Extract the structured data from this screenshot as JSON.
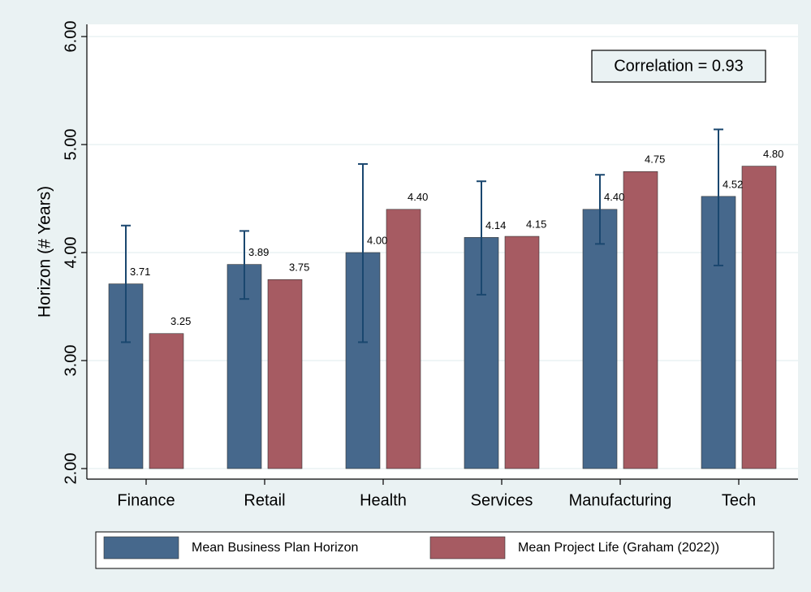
{
  "chart_data": {
    "type": "bar",
    "y_label": "Horizon (# Years)",
    "annotation": "Correlation = 0.93",
    "categories": [
      "Finance",
      "Retail",
      "Health",
      "Services",
      "Manufacturing",
      "Tech"
    ],
    "series": [
      {
        "name": "Mean Business Plan Horizon",
        "color": "#46688c",
        "values": [
          3.71,
          3.89,
          4,
          4.14,
          4.4,
          4.52
        ],
        "value_labels": [
          "3.71",
          "3.89",
          "4.00",
          "4.14",
          "4.40",
          "4.52"
        ],
        "lower": [
          3.17,
          3.57,
          3.17,
          3.61,
          4.08,
          3.88
        ],
        "upper": [
          4.25,
          4.2,
          4.82,
          4.66,
          4.72,
          5.14
        ],
        "error_color": "#1a476f"
      },
      {
        "name": "Mean Project Life (Graham (2022))",
        "color": "#a65b62",
        "values": [
          3.25,
          3.75,
          4.4,
          4.15,
          4.75,
          4.8
        ],
        "value_labels": [
          "3.25",
          "3.75",
          "4.40",
          "4.15",
          "4.75",
          "4.80"
        ]
      }
    ],
    "ylim": [
      2,
      6
    ],
    "yticks": [
      {
        "value": 2,
        "label": "2.00"
      },
      {
        "value": 3,
        "label": "3.00"
      },
      {
        "value": 4,
        "label": "4.00"
      },
      {
        "value": 5,
        "label": "5.00"
      },
      {
        "value": 6,
        "label": "6.00"
      }
    ],
    "grid": true
  }
}
